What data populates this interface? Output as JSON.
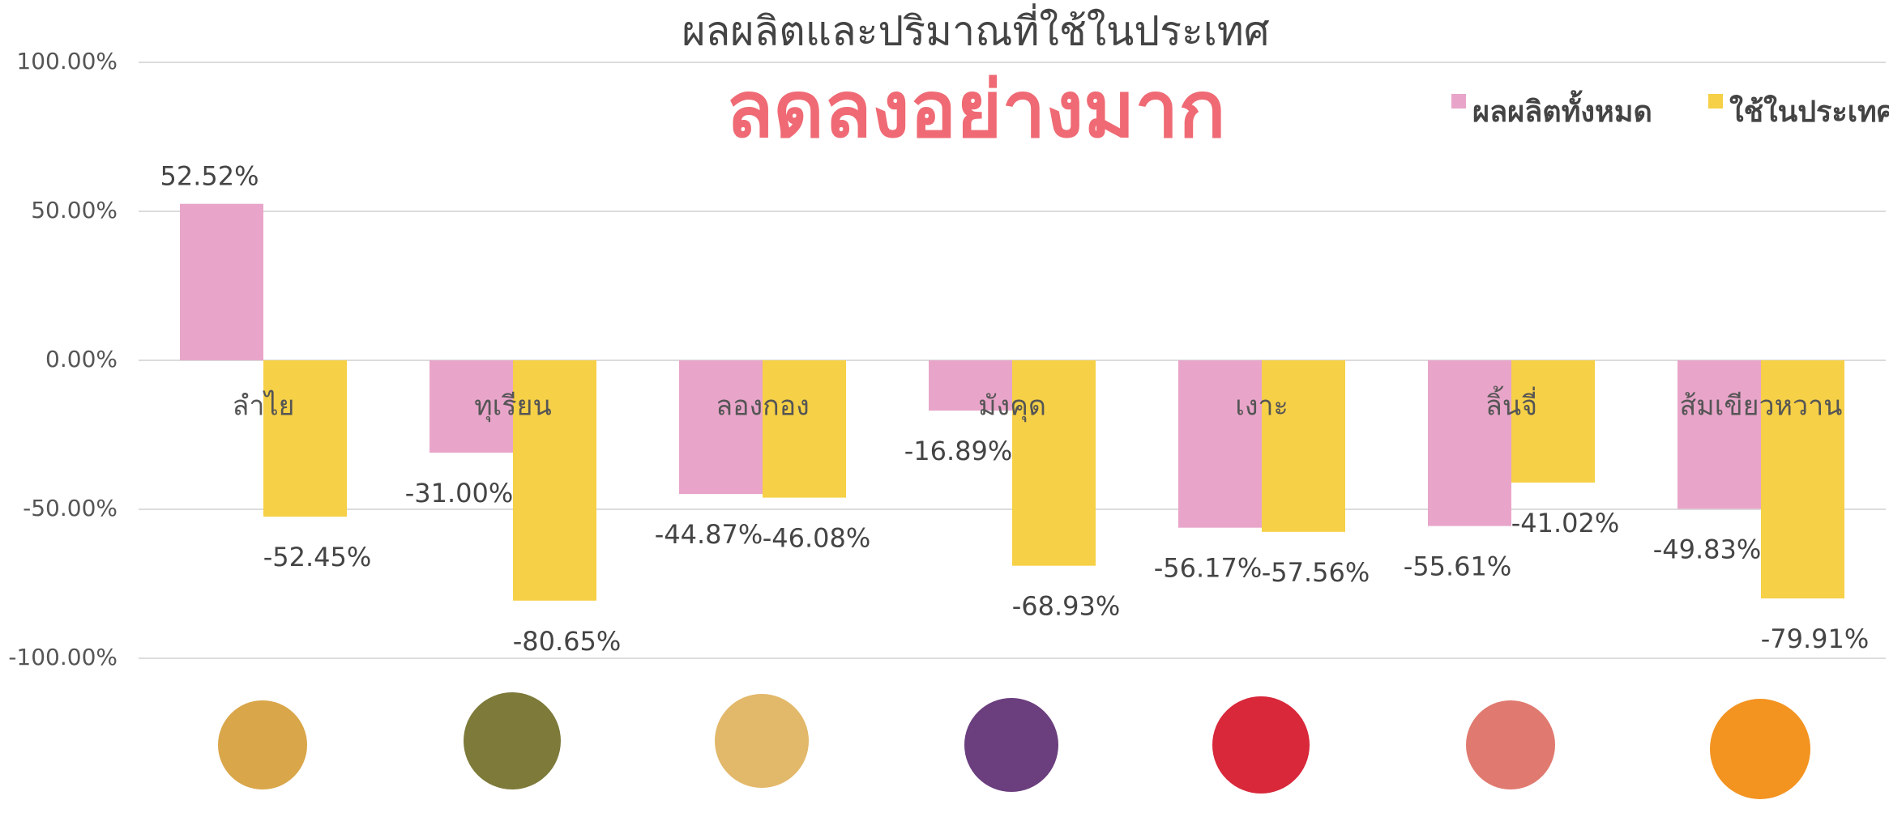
{
  "chart_data": {
    "type": "bar",
    "title": "ผลผลิตและปริมาณที่ใช้ในประเทศ",
    "subtitle": "ลดลงอย่างมาก",
    "categories": [
      "ลำไย",
      "ทุเรียน",
      "ลองกอง",
      "มังคุด",
      "เงาะ",
      "ลิ้นจี่",
      "ส้มเขียวหวาน"
    ],
    "series": [
      {
        "name": "ผลผลิตทั้งหมด",
        "color": "#e8a5c9",
        "values": [
          52.52,
          -31.0,
          -44.87,
          -16.89,
          -56.17,
          -55.61,
          -49.83
        ],
        "value_labels": [
          "52.52%",
          "-31.00%",
          "-44.87%",
          "-16.89%",
          "-56.17%",
          "-55.61%",
          "-49.83%"
        ]
      },
      {
        "name": "ใช้ในประเทศ",
        "color": "#f6d046",
        "values": [
          -52.45,
          -80.65,
          -46.08,
          -68.93,
          -57.56,
          -41.02,
          -79.91
        ],
        "value_labels": [
          "-52.45%",
          "-80.65%",
          "-46.08%",
          "-68.93%",
          "-57.56%",
          "-41.02%",
          "-79.91%"
        ]
      }
    ],
    "ylim": [
      -100,
      100
    ],
    "yticks": [
      {
        "value": -100,
        "label": "-100.00%"
      },
      {
        "value": -50,
        "label": "-50.00%"
      },
      {
        "value": 0,
        "label": "0.00%"
      },
      {
        "value": 50,
        "label": "50.00%"
      },
      {
        "value": 100,
        "label": "100.00%"
      }
    ],
    "grid": true,
    "legend": "top-right"
  }
}
